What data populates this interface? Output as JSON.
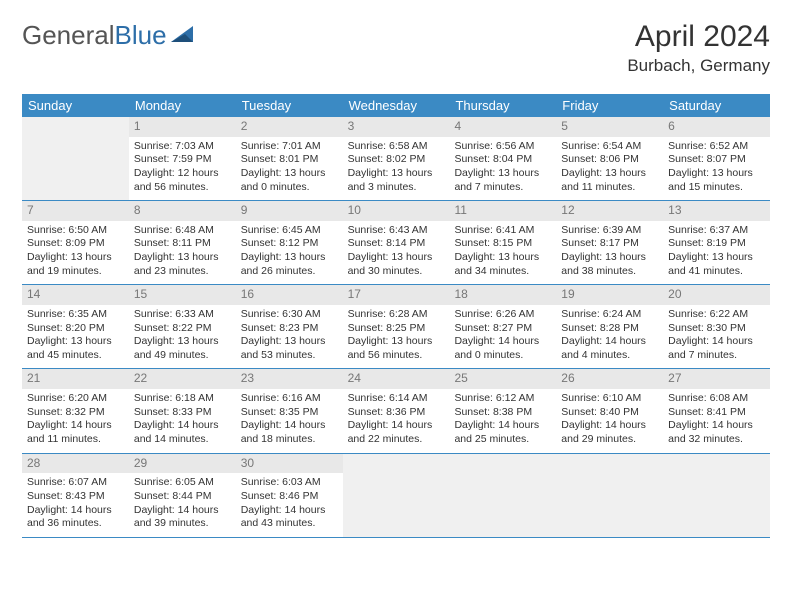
{
  "logo": {
    "text_gray": "General",
    "text_blue": "Blue"
  },
  "header": {
    "month_title": "April 2024",
    "location": "Burbach, Germany"
  },
  "colors": {
    "header_bar": "#3b8ac4",
    "day_number_bg": "#e8e8e8",
    "day_number_text": "#777777",
    "empty_bg": "#f0f0f0",
    "border": "#3b8ac4"
  },
  "weekdays": [
    "Sunday",
    "Monday",
    "Tuesday",
    "Wednesday",
    "Thursday",
    "Friday",
    "Saturday"
  ],
  "weeks": [
    [
      {
        "empty": true
      },
      {
        "n": "1",
        "sunrise": "Sunrise: 7:03 AM",
        "sunset": "Sunset: 7:59 PM",
        "dl1": "Daylight: 12 hours",
        "dl2": "and 56 minutes."
      },
      {
        "n": "2",
        "sunrise": "Sunrise: 7:01 AM",
        "sunset": "Sunset: 8:01 PM",
        "dl1": "Daylight: 13 hours",
        "dl2": "and 0 minutes."
      },
      {
        "n": "3",
        "sunrise": "Sunrise: 6:58 AM",
        "sunset": "Sunset: 8:02 PM",
        "dl1": "Daylight: 13 hours",
        "dl2": "and 3 minutes."
      },
      {
        "n": "4",
        "sunrise": "Sunrise: 6:56 AM",
        "sunset": "Sunset: 8:04 PM",
        "dl1": "Daylight: 13 hours",
        "dl2": "and 7 minutes."
      },
      {
        "n": "5",
        "sunrise": "Sunrise: 6:54 AM",
        "sunset": "Sunset: 8:06 PM",
        "dl1": "Daylight: 13 hours",
        "dl2": "and 11 minutes."
      },
      {
        "n": "6",
        "sunrise": "Sunrise: 6:52 AM",
        "sunset": "Sunset: 8:07 PM",
        "dl1": "Daylight: 13 hours",
        "dl2": "and 15 minutes."
      }
    ],
    [
      {
        "n": "7",
        "sunrise": "Sunrise: 6:50 AM",
        "sunset": "Sunset: 8:09 PM",
        "dl1": "Daylight: 13 hours",
        "dl2": "and 19 minutes."
      },
      {
        "n": "8",
        "sunrise": "Sunrise: 6:48 AM",
        "sunset": "Sunset: 8:11 PM",
        "dl1": "Daylight: 13 hours",
        "dl2": "and 23 minutes."
      },
      {
        "n": "9",
        "sunrise": "Sunrise: 6:45 AM",
        "sunset": "Sunset: 8:12 PM",
        "dl1": "Daylight: 13 hours",
        "dl2": "and 26 minutes."
      },
      {
        "n": "10",
        "sunrise": "Sunrise: 6:43 AM",
        "sunset": "Sunset: 8:14 PM",
        "dl1": "Daylight: 13 hours",
        "dl2": "and 30 minutes."
      },
      {
        "n": "11",
        "sunrise": "Sunrise: 6:41 AM",
        "sunset": "Sunset: 8:15 PM",
        "dl1": "Daylight: 13 hours",
        "dl2": "and 34 minutes."
      },
      {
        "n": "12",
        "sunrise": "Sunrise: 6:39 AM",
        "sunset": "Sunset: 8:17 PM",
        "dl1": "Daylight: 13 hours",
        "dl2": "and 38 minutes."
      },
      {
        "n": "13",
        "sunrise": "Sunrise: 6:37 AM",
        "sunset": "Sunset: 8:19 PM",
        "dl1": "Daylight: 13 hours",
        "dl2": "and 41 minutes."
      }
    ],
    [
      {
        "n": "14",
        "sunrise": "Sunrise: 6:35 AM",
        "sunset": "Sunset: 8:20 PM",
        "dl1": "Daylight: 13 hours",
        "dl2": "and 45 minutes."
      },
      {
        "n": "15",
        "sunrise": "Sunrise: 6:33 AM",
        "sunset": "Sunset: 8:22 PM",
        "dl1": "Daylight: 13 hours",
        "dl2": "and 49 minutes."
      },
      {
        "n": "16",
        "sunrise": "Sunrise: 6:30 AM",
        "sunset": "Sunset: 8:23 PM",
        "dl1": "Daylight: 13 hours",
        "dl2": "and 53 minutes."
      },
      {
        "n": "17",
        "sunrise": "Sunrise: 6:28 AM",
        "sunset": "Sunset: 8:25 PM",
        "dl1": "Daylight: 13 hours",
        "dl2": "and 56 minutes."
      },
      {
        "n": "18",
        "sunrise": "Sunrise: 6:26 AM",
        "sunset": "Sunset: 8:27 PM",
        "dl1": "Daylight: 14 hours",
        "dl2": "and 0 minutes."
      },
      {
        "n": "19",
        "sunrise": "Sunrise: 6:24 AM",
        "sunset": "Sunset: 8:28 PM",
        "dl1": "Daylight: 14 hours",
        "dl2": "and 4 minutes."
      },
      {
        "n": "20",
        "sunrise": "Sunrise: 6:22 AM",
        "sunset": "Sunset: 8:30 PM",
        "dl1": "Daylight: 14 hours",
        "dl2": "and 7 minutes."
      }
    ],
    [
      {
        "n": "21",
        "sunrise": "Sunrise: 6:20 AM",
        "sunset": "Sunset: 8:32 PM",
        "dl1": "Daylight: 14 hours",
        "dl2": "and 11 minutes."
      },
      {
        "n": "22",
        "sunrise": "Sunrise: 6:18 AM",
        "sunset": "Sunset: 8:33 PM",
        "dl1": "Daylight: 14 hours",
        "dl2": "and 14 minutes."
      },
      {
        "n": "23",
        "sunrise": "Sunrise: 6:16 AM",
        "sunset": "Sunset: 8:35 PM",
        "dl1": "Daylight: 14 hours",
        "dl2": "and 18 minutes."
      },
      {
        "n": "24",
        "sunrise": "Sunrise: 6:14 AM",
        "sunset": "Sunset: 8:36 PM",
        "dl1": "Daylight: 14 hours",
        "dl2": "and 22 minutes."
      },
      {
        "n": "25",
        "sunrise": "Sunrise: 6:12 AM",
        "sunset": "Sunset: 8:38 PM",
        "dl1": "Daylight: 14 hours",
        "dl2": "and 25 minutes."
      },
      {
        "n": "26",
        "sunrise": "Sunrise: 6:10 AM",
        "sunset": "Sunset: 8:40 PM",
        "dl1": "Daylight: 14 hours",
        "dl2": "and 29 minutes."
      },
      {
        "n": "27",
        "sunrise": "Sunrise: 6:08 AM",
        "sunset": "Sunset: 8:41 PM",
        "dl1": "Daylight: 14 hours",
        "dl2": "and 32 minutes."
      }
    ],
    [
      {
        "n": "28",
        "sunrise": "Sunrise: 6:07 AM",
        "sunset": "Sunset: 8:43 PM",
        "dl1": "Daylight: 14 hours",
        "dl2": "and 36 minutes."
      },
      {
        "n": "29",
        "sunrise": "Sunrise: 6:05 AM",
        "sunset": "Sunset: 8:44 PM",
        "dl1": "Daylight: 14 hours",
        "dl2": "and 39 minutes."
      },
      {
        "n": "30",
        "sunrise": "Sunrise: 6:03 AM",
        "sunset": "Sunset: 8:46 PM",
        "dl1": "Daylight: 14 hours",
        "dl2": "and 43 minutes."
      },
      {
        "empty": true
      },
      {
        "empty": true
      },
      {
        "empty": true
      },
      {
        "empty": true
      }
    ]
  ]
}
